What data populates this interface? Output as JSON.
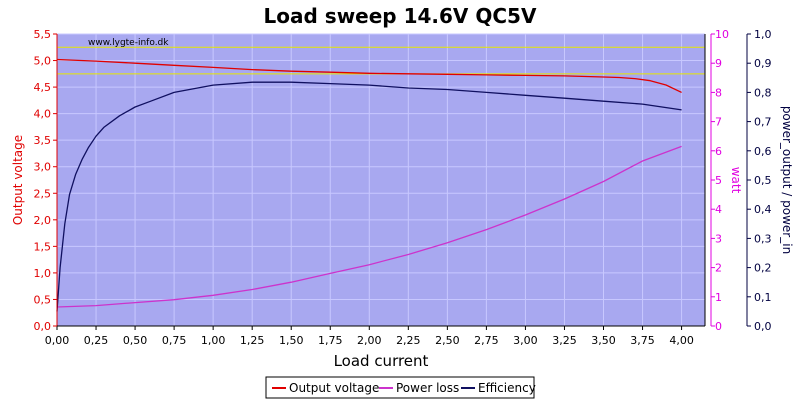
{
  "chart_data": {
    "type": "line",
    "title": "Load sweep 14.6V QC5V",
    "watermark": "www.lygte-info.dk",
    "xlabel": "Load current",
    "ylabel_left": "Output voltage",
    "ylabel_right1": "watt",
    "ylabel_right2": "power_output / power_in",
    "xlim": [
      0,
      4.15
    ],
    "ylim_left": [
      0,
      5.5
    ],
    "ylim_right1": [
      0,
      10
    ],
    "ylim_right2": [
      0,
      1.0
    ],
    "x_ticks": [
      "0,00",
      "0,25",
      "0,50",
      "0,75",
      "1,00",
      "1,25",
      "1,50",
      "1,75",
      "2,00",
      "2,25",
      "2,50",
      "2,75",
      "3,00",
      "3,25",
      "3,50",
      "3,75",
      "4,00"
    ],
    "y_left_ticks": [
      "0,0",
      "0,5",
      "1,0",
      "1,5",
      "2,0",
      "2,5",
      "3,0",
      "3,5",
      "4,0",
      "4,5",
      "5,0",
      "5,5"
    ],
    "y_right1_ticks": [
      "0",
      "1",
      "2",
      "3",
      "4",
      "5",
      "6",
      "7",
      "8",
      "9",
      "10"
    ],
    "y_right2_ticks": [
      "0,0",
      "0,1",
      "0,2",
      "0,3",
      "0,4",
      "0,5",
      "0,6",
      "0,7",
      "0,8",
      "0,9",
      "1,0"
    ],
    "grid": true,
    "reference_lines_left": [
      5.25,
      4.75
    ],
    "legend_position": "bottom-center",
    "colors": {
      "plot_bg": "#a8a8f0",
      "grid": "#c8c8ff",
      "output_voltage": "#e00000",
      "power_loss": "#cc33cc",
      "efficiency": "#101060",
      "reference": "#e6e600",
      "left_axis": "#e00000",
      "right1_axis": "#e000e0",
      "right2_axis": "#000040"
    },
    "series": [
      {
        "name": "Output voltage",
        "axis": "left",
        "x": [
          0,
          0.25,
          0.5,
          0.75,
          1.0,
          1.25,
          1.5,
          1.75,
          2.0,
          2.25,
          2.5,
          2.75,
          3.0,
          3.25,
          3.5,
          3.6,
          3.7,
          3.8,
          3.9,
          4.0
        ],
        "y": [
          5.02,
          4.99,
          4.95,
          4.91,
          4.87,
          4.83,
          4.8,
          4.78,
          4.76,
          4.75,
          4.74,
          4.73,
          4.72,
          4.71,
          4.69,
          4.68,
          4.66,
          4.62,
          4.54,
          4.4
        ]
      },
      {
        "name": "Power loss",
        "axis": "right1",
        "x": [
          0,
          0.25,
          0.5,
          0.75,
          1.0,
          1.25,
          1.5,
          1.75,
          2.0,
          2.25,
          2.5,
          2.75,
          3.0,
          3.25,
          3.5,
          3.75,
          4.0
        ],
        "y": [
          0.65,
          0.7,
          0.8,
          0.9,
          1.05,
          1.25,
          1.5,
          1.8,
          2.1,
          2.45,
          2.85,
          3.3,
          3.8,
          4.35,
          4.95,
          5.65,
          6.15
        ]
      },
      {
        "name": "Efficiency",
        "axis": "right2",
        "x": [
          0,
          0.02,
          0.05,
          0.08,
          0.12,
          0.16,
          0.2,
          0.25,
          0.3,
          0.4,
          0.5,
          0.6,
          0.75,
          1.0,
          1.25,
          1.5,
          1.75,
          2.0,
          2.25,
          2.5,
          2.75,
          3.0,
          3.25,
          3.5,
          3.75,
          4.0
        ],
        "y": [
          0.05,
          0.2,
          0.35,
          0.45,
          0.52,
          0.57,
          0.61,
          0.65,
          0.68,
          0.72,
          0.75,
          0.77,
          0.8,
          0.825,
          0.835,
          0.835,
          0.83,
          0.825,
          0.815,
          0.81,
          0.8,
          0.79,
          0.78,
          0.77,
          0.76,
          0.74
        ]
      }
    ]
  }
}
